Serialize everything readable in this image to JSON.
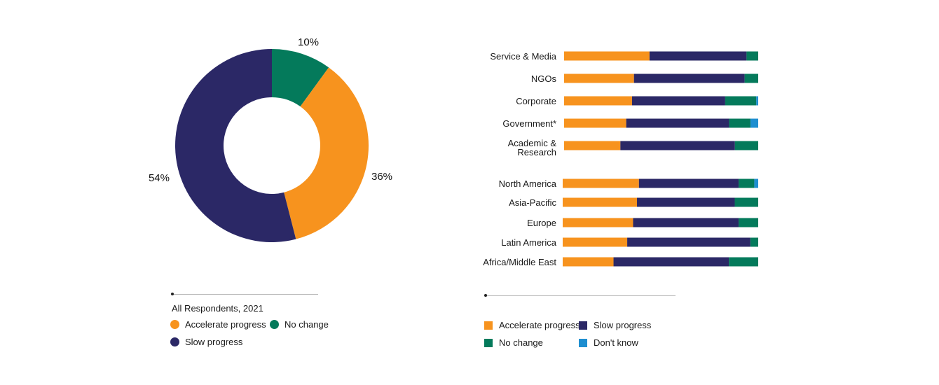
{
  "colors": {
    "accelerate": "#F7931E",
    "slow": "#2B2866",
    "no_change": "#047A5B",
    "dont_know": "#1E8ED0"
  },
  "chart_data": [
    {
      "type": "pie",
      "subtype": "donut",
      "caption": "All Respondents, 2021",
      "slices": [
        {
          "name": "No change",
          "value": 10,
          "label": "10%",
          "color_key": "no_change"
        },
        {
          "name": "Accelerate progress",
          "value": 36,
          "label": "36%",
          "color_key": "accelerate"
        },
        {
          "name": "Slow progress",
          "value": 54,
          "label": "54%",
          "color_key": "slow"
        }
      ],
      "legend": [
        {
          "label": "Accelerate progress",
          "color_key": "accelerate"
        },
        {
          "label": "No change",
          "color_key": "no_change"
        },
        {
          "label": "Slow progress",
          "color_key": "slow"
        }
      ]
    },
    {
      "type": "bar",
      "orientation": "horizontal",
      "stacked": true,
      "xlim": [
        0,
        100
      ],
      "grid": false,
      "legend_position": "bottom",
      "groups": [
        {
          "categories": [
            "Service & Media",
            "NGOs",
            "Corporate",
            "Government*",
            "Academic & Research"
          ],
          "values": [
            [
              44,
              50,
              6,
              0
            ],
            [
              36,
              57,
              7,
              0
            ],
            [
              35,
              48,
              16,
              1
            ],
            [
              32,
              53,
              11,
              4
            ],
            [
              29,
              59,
              12,
              0
            ]
          ]
        },
        {
          "categories": [
            "North America",
            "Asia-Pacific",
            "Europe",
            "Latin America",
            "Africa/Middle East"
          ],
          "values": [
            [
              39,
              51,
              8,
              2
            ],
            [
              38,
              50,
              12,
              0
            ],
            [
              36,
              54,
              10,
              0
            ],
            [
              33,
              63,
              4,
              0
            ],
            [
              26,
              59,
              15,
              0
            ]
          ]
        }
      ],
      "series": [
        {
          "name": "Accelerate progress",
          "color_key": "accelerate"
        },
        {
          "name": "Slow progress",
          "color_key": "slow"
        },
        {
          "name": "No change",
          "color_key": "no_change"
        },
        {
          "name": "Don't know",
          "color_key": "dont_know"
        }
      ]
    }
  ]
}
